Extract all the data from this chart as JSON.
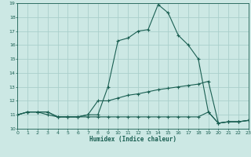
{
  "xlabel": "Humidex (Indice chaleur)",
  "bg_color": "#cce8e4",
  "grid_color": "#aacfcb",
  "line_color": "#1a5f52",
  "x_min": 0,
  "x_max": 23,
  "y_min": 10,
  "y_max": 19,
  "curve1_x": [
    0,
    1,
    2,
    3,
    4,
    5,
    6,
    7,
    8,
    9,
    10,
    11,
    12,
    13,
    14,
    15,
    16,
    17,
    18,
    19,
    20,
    21,
    22,
    23
  ],
  "curve1_y": [
    11.0,
    11.2,
    11.2,
    11.2,
    10.85,
    10.85,
    10.85,
    11.0,
    11.0,
    13.0,
    16.3,
    16.5,
    17.0,
    17.1,
    18.9,
    18.3,
    16.7,
    16.0,
    15.0,
    11.2,
    10.4,
    10.5,
    10.5,
    10.6
  ],
  "curve2_x": [
    0,
    1,
    2,
    3,
    4,
    5,
    6,
    7,
    8,
    9,
    10,
    11,
    12,
    13,
    14,
    15,
    16,
    17,
    18,
    19,
    20,
    21,
    22,
    23
  ],
  "curve2_y": [
    11.0,
    11.2,
    11.2,
    11.2,
    10.85,
    10.85,
    10.85,
    11.0,
    12.0,
    12.0,
    12.2,
    12.4,
    12.5,
    12.65,
    12.8,
    12.9,
    13.0,
    13.1,
    13.2,
    13.4,
    10.4,
    10.5,
    10.5,
    10.6
  ],
  "curve3_x": [
    0,
    1,
    2,
    3,
    4,
    5,
    6,
    7,
    8,
    9,
    10,
    11,
    12,
    13,
    14,
    15,
    16,
    17,
    18,
    19,
    20,
    21,
    22,
    23
  ],
  "curve3_y": [
    11.0,
    11.2,
    11.2,
    11.0,
    10.85,
    10.85,
    10.85,
    10.85,
    10.85,
    10.85,
    10.85,
    10.85,
    10.85,
    10.85,
    10.85,
    10.85,
    10.85,
    10.85,
    10.85,
    11.2,
    10.4,
    10.5,
    10.5,
    10.6
  ]
}
